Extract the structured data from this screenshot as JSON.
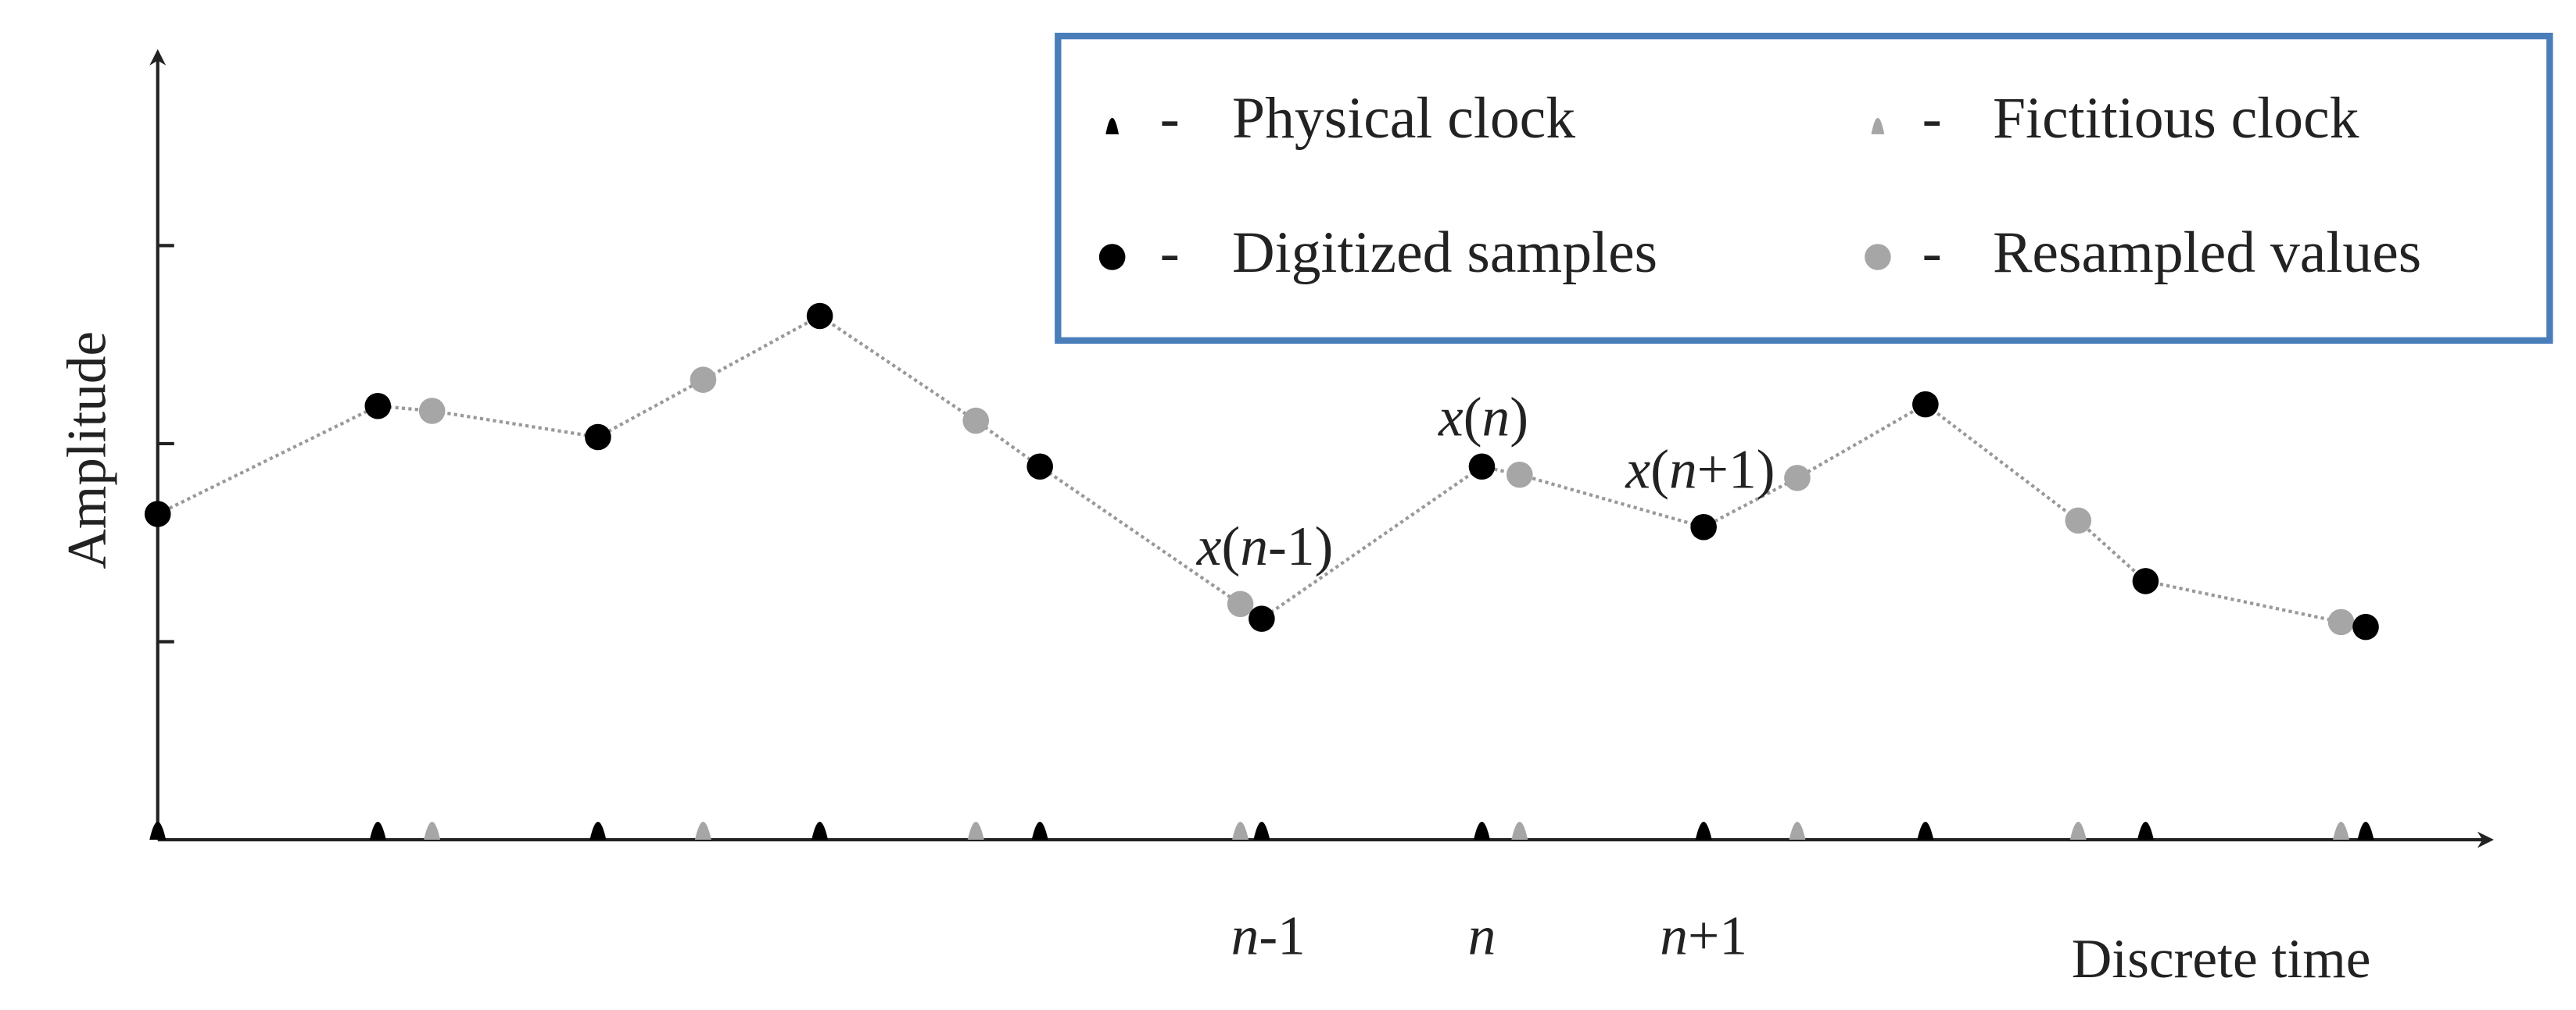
{
  "legend": {
    "items": [
      {
        "dash": "-",
        "label": "Physical clock"
      },
      {
        "dash": "-",
        "label": "Fictitious clock"
      },
      {
        "dash": "-",
        "label": "Digitized samples"
      },
      {
        "dash": "-",
        "label": "Resampled values"
      }
    ]
  },
  "axes": {
    "y_label": "Amplitude",
    "x_label": "Discrete time"
  },
  "annotations": {
    "x_n_minus_1": [
      "x",
      "(",
      "n",
      "-1)"
    ],
    "x_n": [
      "x",
      "(",
      "n",
      ")"
    ],
    "x_n_plus_1": [
      "x",
      "(",
      "n",
      "+1)"
    ],
    "tick_n_minus_1": [
      "n",
      "-1"
    ],
    "tick_n": [
      "n"
    ],
    "tick_n_plus_1": [
      "n",
      "+1"
    ]
  }
}
